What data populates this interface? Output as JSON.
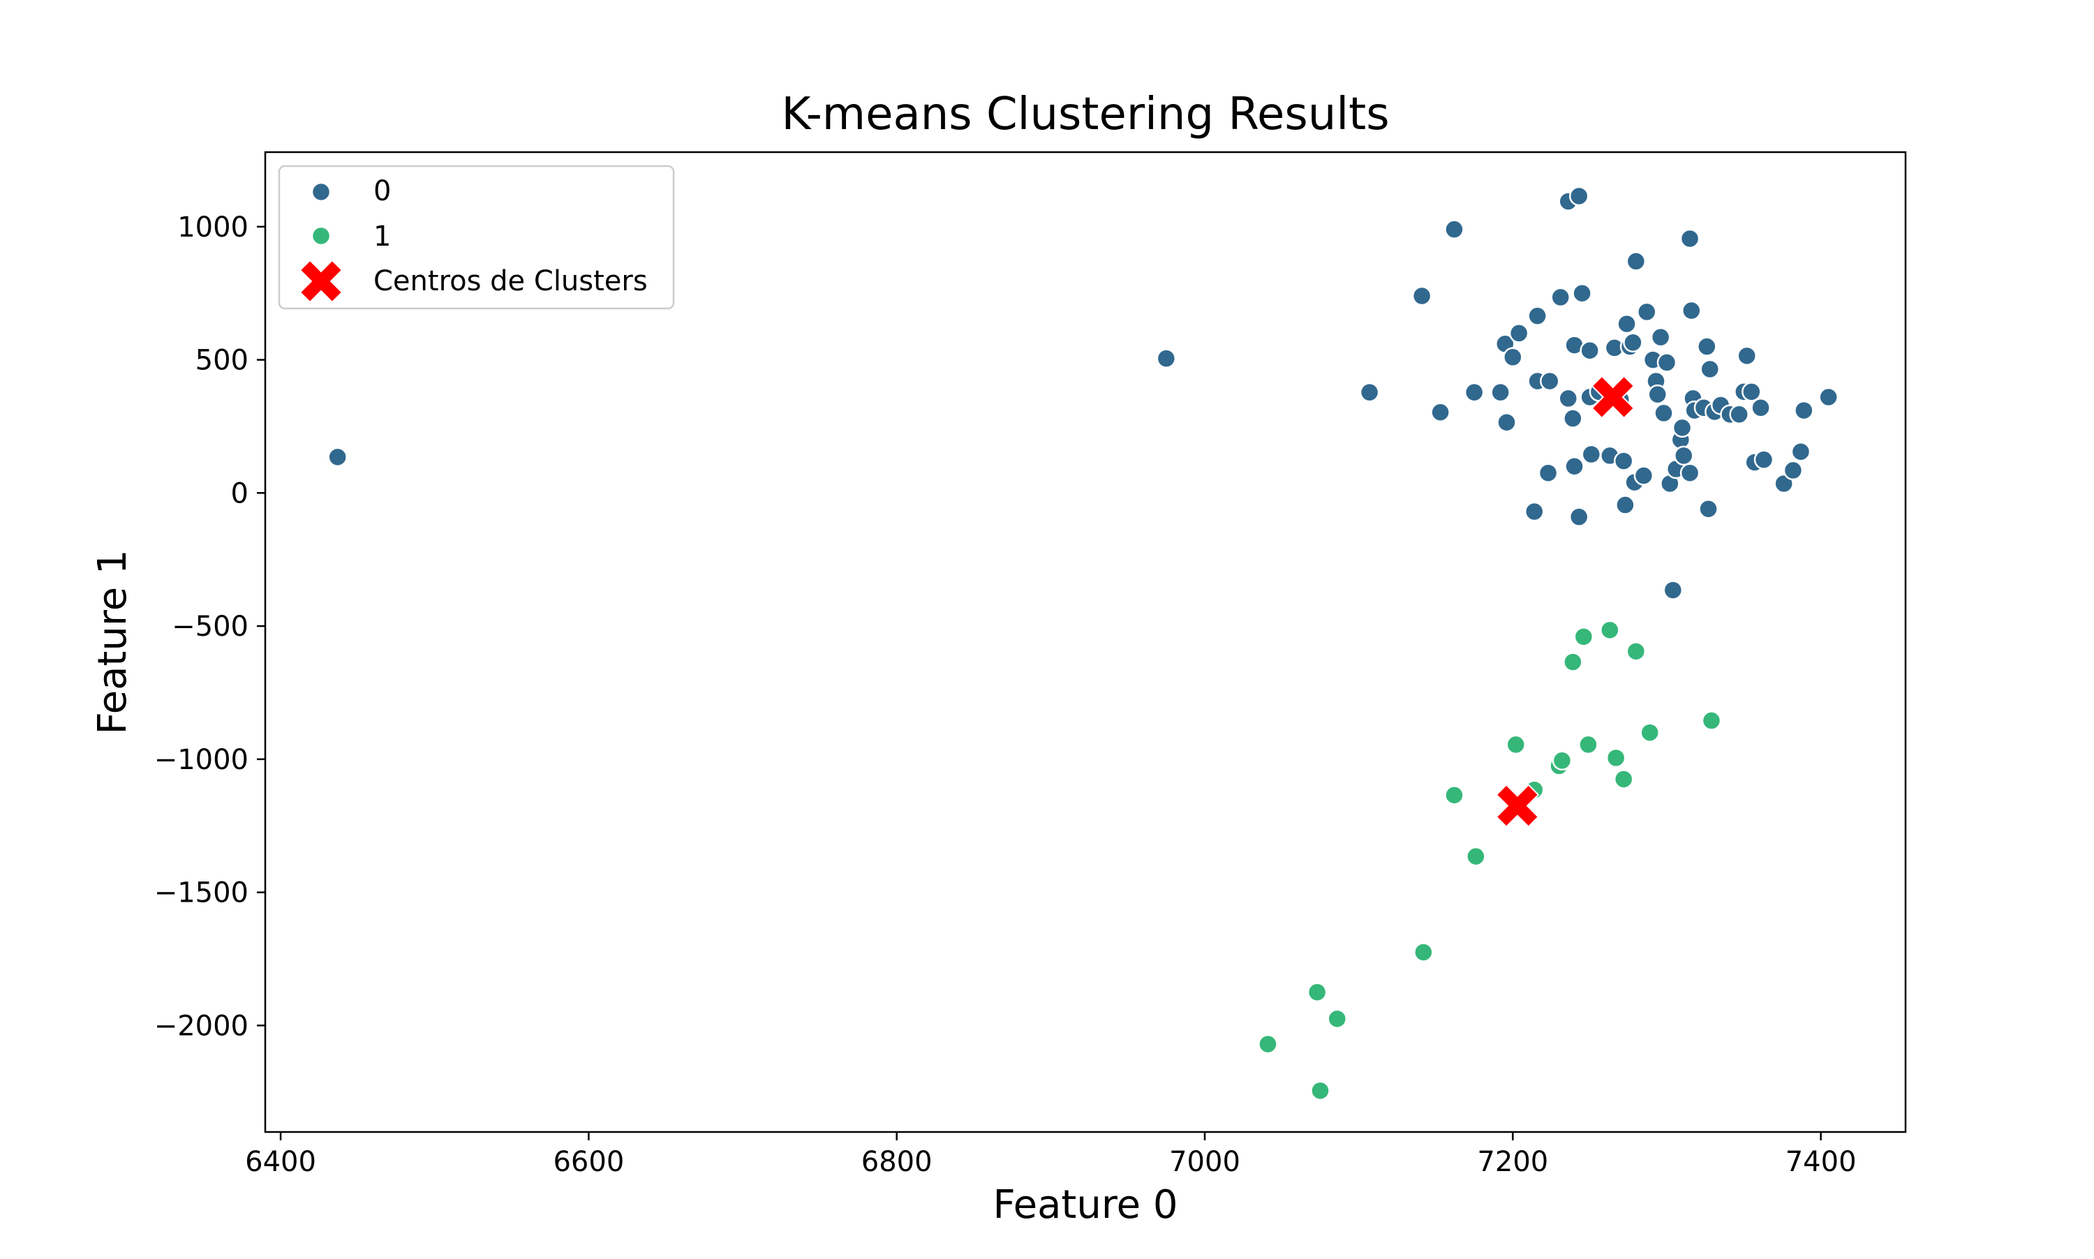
{
  "chart_data": {
    "type": "scatter",
    "title": "K-means Clustering Results",
    "xlabel": "Feature 0",
    "ylabel": "Feature 1",
    "xlim": [
      6390,
      7455
    ],
    "ylim": [
      -2400,
      1280
    ],
    "xticks": [
      6400,
      6600,
      6800,
      7000,
      7200,
      7400
    ],
    "yticks": [
      -2000,
      -1500,
      -1000,
      -500,
      0,
      500,
      1000
    ],
    "xtick_labels": [
      "6400",
      "6600",
      "6800",
      "7000",
      "7200",
      "7400"
    ],
    "ytick_labels": [
      "−2000",
      "−1500",
      "−1000",
      "−500",
      "0",
      "500",
      "1000"
    ],
    "grid": false,
    "legend_position": "top-left",
    "colors": {
      "cluster0": "#31688e",
      "cluster1": "#35b779",
      "centers": "#ff0000"
    },
    "series": [
      {
        "name": "0",
        "color": "#31688e",
        "points": [
          [
            6437,
            135
          ],
          [
            6975,
            505
          ],
          [
            7107,
            378
          ],
          [
            7141,
            740
          ],
          [
            7153,
            303
          ],
          [
            7162,
            990
          ],
          [
            7175,
            378
          ],
          [
            7192,
            378
          ],
          [
            7195,
            560
          ],
          [
            7196,
            265
          ],
          [
            7200,
            510
          ],
          [
            7204,
            600
          ],
          [
            7214,
            -70
          ],
          [
            7216,
            420
          ],
          [
            7216,
            665
          ],
          [
            7223,
            75
          ],
          [
            7224,
            420
          ],
          [
            7231,
            735
          ],
          [
            7236,
            1095
          ],
          [
            7236,
            355
          ],
          [
            7239,
            280
          ],
          [
            7240,
            100
          ],
          [
            7240,
            555
          ],
          [
            7243,
            1115
          ],
          [
            7243,
            -90
          ],
          [
            7245,
            750
          ],
          [
            7250,
            535
          ],
          [
            7250,
            360
          ],
          [
            7251,
            145
          ],
          [
            7256,
            380
          ],
          [
            7263,
            140
          ],
          [
            7266,
            545
          ],
          [
            7270,
            350
          ],
          [
            7272,
            120
          ],
          [
            7273,
            -45
          ],
          [
            7274,
            635
          ],
          [
            7276,
            550
          ],
          [
            7278,
            565
          ],
          [
            7279,
            40
          ],
          [
            7280,
            870
          ],
          [
            7285,
            65
          ],
          [
            7287,
            680
          ],
          [
            7291,
            500
          ],
          [
            7293,
            420
          ],
          [
            7294,
            370
          ],
          [
            7296,
            585
          ],
          [
            7298,
            300
          ],
          [
            7300,
            490
          ],
          [
            7302,
            35
          ],
          [
            7304,
            -365
          ],
          [
            7306,
            90
          ],
          [
            7309,
            200
          ],
          [
            7310,
            245
          ],
          [
            7311,
            140
          ],
          [
            7315,
            955
          ],
          [
            7315,
            75
          ],
          [
            7316,
            685
          ],
          [
            7317,
            355
          ],
          [
            7318,
            310
          ],
          [
            7324,
            320
          ],
          [
            7326,
            550
          ],
          [
            7327,
            -60
          ],
          [
            7328,
            465
          ],
          [
            7331,
            305
          ],
          [
            7335,
            330
          ],
          [
            7341,
            295
          ],
          [
            7347,
            295
          ],
          [
            7350,
            380
          ],
          [
            7352,
            515
          ],
          [
            7355,
            380
          ],
          [
            7357,
            115
          ],
          [
            7361,
            320
          ],
          [
            7363,
            125
          ],
          [
            7376,
            35
          ],
          [
            7382,
            85
          ],
          [
            7387,
            155
          ],
          [
            7389,
            310
          ],
          [
            7405,
            360
          ]
        ]
      },
      {
        "name": "1",
        "color": "#35b779",
        "points": [
          [
            7041,
            -2070
          ],
          [
            7073,
            -1875
          ],
          [
            7075,
            -2245
          ],
          [
            7086,
            -1975
          ],
          [
            7142,
            -1725
          ],
          [
            7162,
            -1135
          ],
          [
            7176,
            -1365
          ],
          [
            7202,
            -945
          ],
          [
            7214,
            -1115
          ],
          [
            7230,
            -1025
          ],
          [
            7232,
            -1005
          ],
          [
            7239,
            -635
          ],
          [
            7246,
            -540
          ],
          [
            7249,
            -945
          ],
          [
            7263,
            -515
          ],
          [
            7267,
            -995
          ],
          [
            7272,
            -1075
          ],
          [
            7280,
            -595
          ],
          [
            7289,
            -900
          ],
          [
            7329,
            -855
          ]
        ]
      },
      {
        "name": "Centros de Clusters",
        "color": "#ff0000",
        "marker": "x",
        "points": [
          [
            7265,
            360
          ],
          [
            7203,
            -1175
          ]
        ]
      }
    ]
  }
}
